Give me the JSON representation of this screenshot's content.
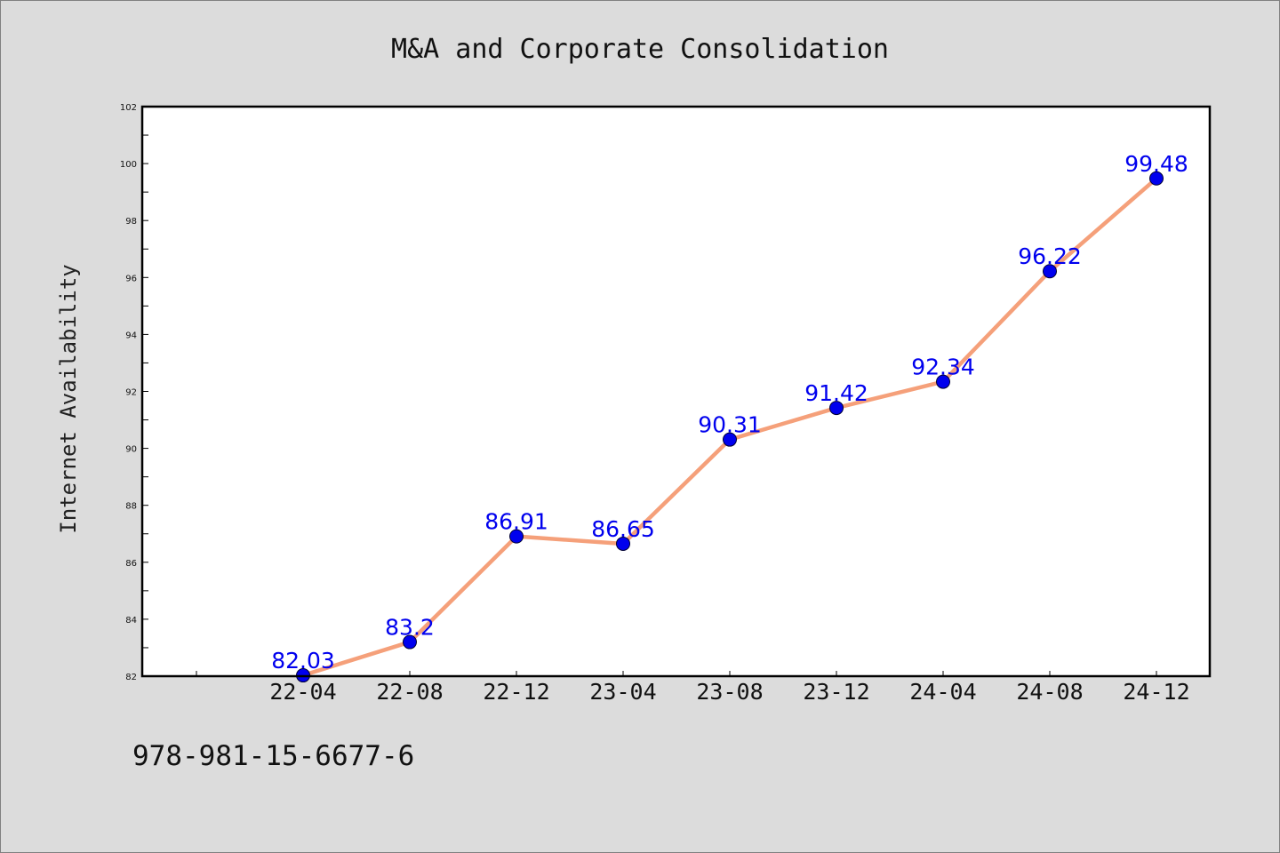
{
  "footer_code": "978-981-15-6677-6",
  "colors": {
    "background": "#dcdcdc",
    "plot_background": "#ffffff",
    "line": "#f5a07a",
    "marker": "#0000ee",
    "data_label": "#0000ee"
  },
  "chart_data": {
    "type": "line",
    "title": "M&A and Corporate Consolidation",
    "xlabel": "",
    "ylabel": "Internet Availability",
    "categories": [
      "22-04",
      "22-08",
      "22-12",
      "23-04",
      "23-08",
      "23-12",
      "24-04",
      "24-08",
      "24-12"
    ],
    "values": [
      82.03,
      83.2,
      86.91,
      86.65,
      90.31,
      91.42,
      92.34,
      96.22,
      99.48
    ],
    "data_labels": [
      "82.03",
      "83.2",
      "86.91",
      "86.65",
      "90.31",
      "91.42",
      "92.34",
      "96.22",
      "99.48"
    ],
    "ylim": [
      82,
      102
    ],
    "yticks": [
      82,
      84,
      86,
      88,
      90,
      92,
      94,
      96,
      98,
      100,
      102
    ],
    "grid": false,
    "legend": "none"
  }
}
